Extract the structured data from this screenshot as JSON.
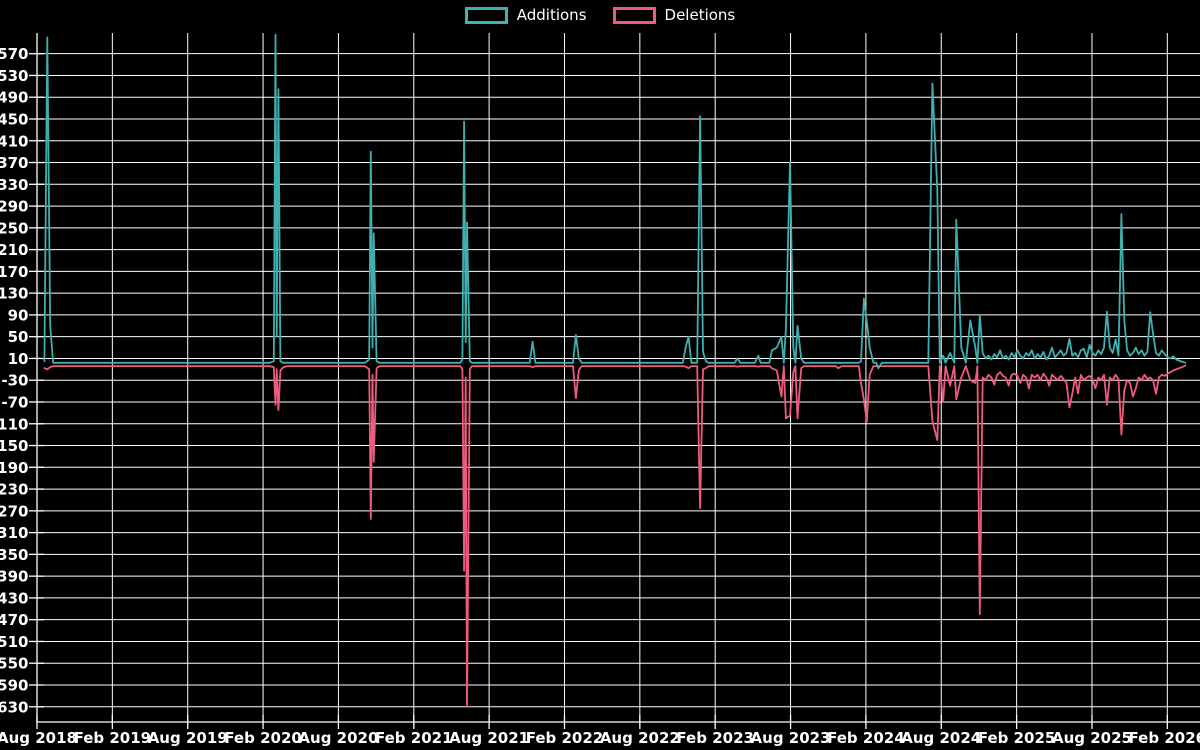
{
  "legend": {
    "items": [
      {
        "label": "Additions",
        "color": "#3fb0b0"
      },
      {
        "label": "Deletions",
        "color": "#ef5b7d"
      }
    ]
  },
  "chart_data": {
    "type": "line",
    "title": "",
    "legend_position": "top-center",
    "grid": true,
    "background_color": "#000000",
    "grid_color": "#ffffff",
    "axis_color": "#ffffff",
    "x_axis": {
      "tick_labels": [
        "Aug 2018",
        "Feb 2019",
        "Aug 2019",
        "Feb 2020",
        "Aug 2020",
        "Feb 2021",
        "Aug 2021",
        "Feb 2022",
        "Aug 2022",
        "Feb 2023",
        "Aug 2023",
        "Feb 2024",
        "Aug 2024",
        "Feb 2025",
        "Aug 2025",
        "Feb 2026"
      ],
      "start_date": "2018-08-01",
      "months_per_tick": 6
    },
    "y_axis": {
      "ticks": [
        570,
        530,
        490,
        450,
        410,
        370,
        330,
        290,
        250,
        210,
        170,
        130,
        90,
        50,
        10,
        -30,
        -70,
        -110,
        -150,
        -190,
        -230,
        -270,
        -310,
        -350,
        -390,
        -430,
        -470,
        -510,
        -550,
        -590,
        -630
      ],
      "min": -658,
      "max": 608
    },
    "series": [
      {
        "name": "Additions",
        "color": "#3fb0b0"
      },
      {
        "name": "Deletions",
        "color": "#ef5b7d"
      }
    ],
    "domain": {
      "start": "2018-08-19",
      "end": "2026-03-15",
      "step_days": 7
    },
    "weekly_default": [
      2,
      -4
    ],
    "events": {
      "2018-08-19": [
        5,
        -8
      ],
      "2018-08-26": [
        600,
        -10
      ],
      "2018-09-02": [
        70,
        -6
      ],
      "2020-02-26": [
        5,
        -6
      ],
      "2020-03-01": [
        605,
        -75
      ],
      "2020-03-04": [
        50,
        -10
      ],
      "2020-03-08": [
        505,
        -85
      ],
      "2020-03-13": [
        5,
        -12
      ],
      "2020-03-20": [
        2,
        -6
      ],
      "2020-10-14": [
        8,
        -10
      ],
      "2020-10-18": [
        390,
        -285
      ],
      "2020-10-22": [
        30,
        -20
      ],
      "2020-10-25": [
        240,
        -180
      ],
      "2020-11-01": [
        5,
        -8
      ],
      "2021-05-28": [
        8,
        -10
      ],
      "2021-06-01": [
        445,
        -380
      ],
      "2021-06-05": [
        40,
        -25
      ],
      "2021-06-08": [
        260,
        -630
      ],
      "2021-06-15": [
        5,
        -10
      ],
      "2021-11-14": [
        41,
        -6
      ],
      "2022-02-27": [
        53,
        -63
      ],
      "2022-03-06": [
        10,
        -12
      ],
      "2022-11-20": [
        30,
        -5
      ],
      "2022-11-27": [
        50,
        -8
      ],
      "2022-12-25": [
        455,
        -265
      ],
      "2023-01-01": [
        22,
        -10
      ],
      "2023-01-08": [
        5,
        -8
      ],
      "2023-03-25": [
        10,
        -5
      ],
      "2023-05-15": [
        15,
        -5
      ],
      "2023-06-17": [
        25,
        -8
      ],
      "2023-06-29": [
        30,
        -12
      ],
      "2023-07-10": [
        50,
        -60
      ],
      "2023-07-21": [
        65,
        -100
      ],
      "2023-07-31": [
        370,
        -95
      ],
      "2023-08-08": [
        30,
        -15
      ],
      "2023-08-18": [
        70,
        -100
      ],
      "2023-08-27": [
        10,
        -8
      ],
      "2023-11-25": [
        2,
        -8
      ],
      "2024-01-19": [
        5,
        -35
      ],
      "2024-01-26": [
        120,
        -66
      ],
      "2024-02-02": [
        78,
        -106
      ],
      "2024-02-09": [
        30,
        -20
      ],
      "2024-03-01": [
        -8,
        -4
      ],
      "2024-07-10": [
        515,
        -105
      ],
      "2024-07-22": [
        320,
        -140
      ],
      "2024-08-05": [
        15,
        -70
      ],
      "2024-08-22": [
        20,
        -40
      ],
      "2024-09-06": [
        265,
        -65
      ],
      "2024-09-18": [
        30,
        -25
      ],
      "2024-10-10": [
        80,
        -30
      ],
      "2024-10-22": [
        30,
        -35
      ],
      "2024-11-02": [
        90,
        -460
      ],
      "2024-11-09": [
        20,
        -25
      ],
      "2024-11-16": [
        10,
        -30
      ],
      "2024-11-23": [
        15,
        -20
      ],
      "2024-11-30": [
        8,
        -25
      ],
      "2024-12-07": [
        18,
        -38
      ],
      "2024-12-14": [
        12,
        -20
      ],
      "2024-12-21": [
        25,
        -15
      ],
      "2024-12-28": [
        10,
        -22
      ],
      "2025-01-04": [
        15,
        -25
      ],
      "2025-01-11": [
        8,
        -40
      ],
      "2025-01-18": [
        20,
        -20
      ],
      "2025-01-25": [
        12,
        -18
      ],
      "2025-02-01": [
        25,
        -22
      ],
      "2025-02-08": [
        15,
        -35
      ],
      "2025-02-15": [
        10,
        -20
      ],
      "2025-02-22": [
        20,
        -25
      ],
      "2025-03-01": [
        15,
        -45
      ],
      "2025-03-08": [
        25,
        -20
      ],
      "2025-03-15": [
        10,
        -25
      ],
      "2025-03-22": [
        18,
        -20
      ],
      "2025-03-29": [
        12,
        -30
      ],
      "2025-04-05": [
        22,
        -18
      ],
      "2025-04-12": [
        8,
        -25
      ],
      "2025-04-19": [
        15,
        -40
      ],
      "2025-04-26": [
        30,
        -20
      ],
      "2025-05-03": [
        12,
        -25
      ],
      "2025-05-10": [
        18,
        -30
      ],
      "2025-05-17": [
        25,
        -22
      ],
      "2025-05-24": [
        15,
        -28
      ],
      "2025-05-31": [
        20,
        -35
      ],
      "2025-06-07": [
        46,
        -80
      ],
      "2025-06-14": [
        15,
        -55
      ],
      "2025-06-21": [
        20,
        -25
      ],
      "2025-06-28": [
        12,
        -54
      ],
      "2025-07-05": [
        25,
        -20
      ],
      "2025-07-12": [
        28,
        -30
      ],
      "2025-07-19": [
        12,
        -25
      ],
      "2025-07-26": [
        35,
        -22
      ],
      "2025-08-02": [
        20,
        -28
      ],
      "2025-08-09": [
        15,
        -45
      ],
      "2025-08-16": [
        25,
        -25
      ],
      "2025-08-23": [
        18,
        -30
      ],
      "2025-08-30": [
        30,
        -20
      ],
      "2025-09-06": [
        96,
        -75
      ],
      "2025-09-13": [
        30,
        -25
      ],
      "2025-09-20": [
        20,
        -30
      ],
      "2025-09-27": [
        45,
        -20
      ],
      "2025-10-04": [
        15,
        -28
      ],
      "2025-10-11": [
        275,
        -130
      ],
      "2025-10-18": [
        80,
        -48
      ],
      "2025-10-25": [
        25,
        -30
      ],
      "2025-11-01": [
        15,
        -35
      ],
      "2025-11-08": [
        20,
        -60
      ],
      "2025-11-15": [
        30,
        -45
      ],
      "2025-11-22": [
        18,
        -25
      ],
      "2025-11-29": [
        25,
        -30
      ],
      "2025-12-06": [
        15,
        -20
      ],
      "2025-12-13": [
        22,
        -28
      ],
      "2025-12-20": [
        95,
        -25
      ],
      "2025-12-27": [
        55,
        -30
      ],
      "2026-01-03": [
        20,
        -55
      ],
      "2026-01-10": [
        15,
        -25
      ],
      "2026-01-17": [
        25,
        -20
      ],
      "2026-01-24": [
        18,
        -22
      ],
      "2026-01-31": [
        12,
        -18
      ],
      "2026-02-07": [
        10,
        -15
      ],
      "2026-02-14": [
        14,
        -12
      ],
      "2026-02-21": [
        8,
        -10
      ],
      "2026-02-28": [
        6,
        -8
      ],
      "2026-03-07": [
        4,
        -6
      ],
      "2026-03-15": [
        2,
        -3
      ]
    }
  }
}
